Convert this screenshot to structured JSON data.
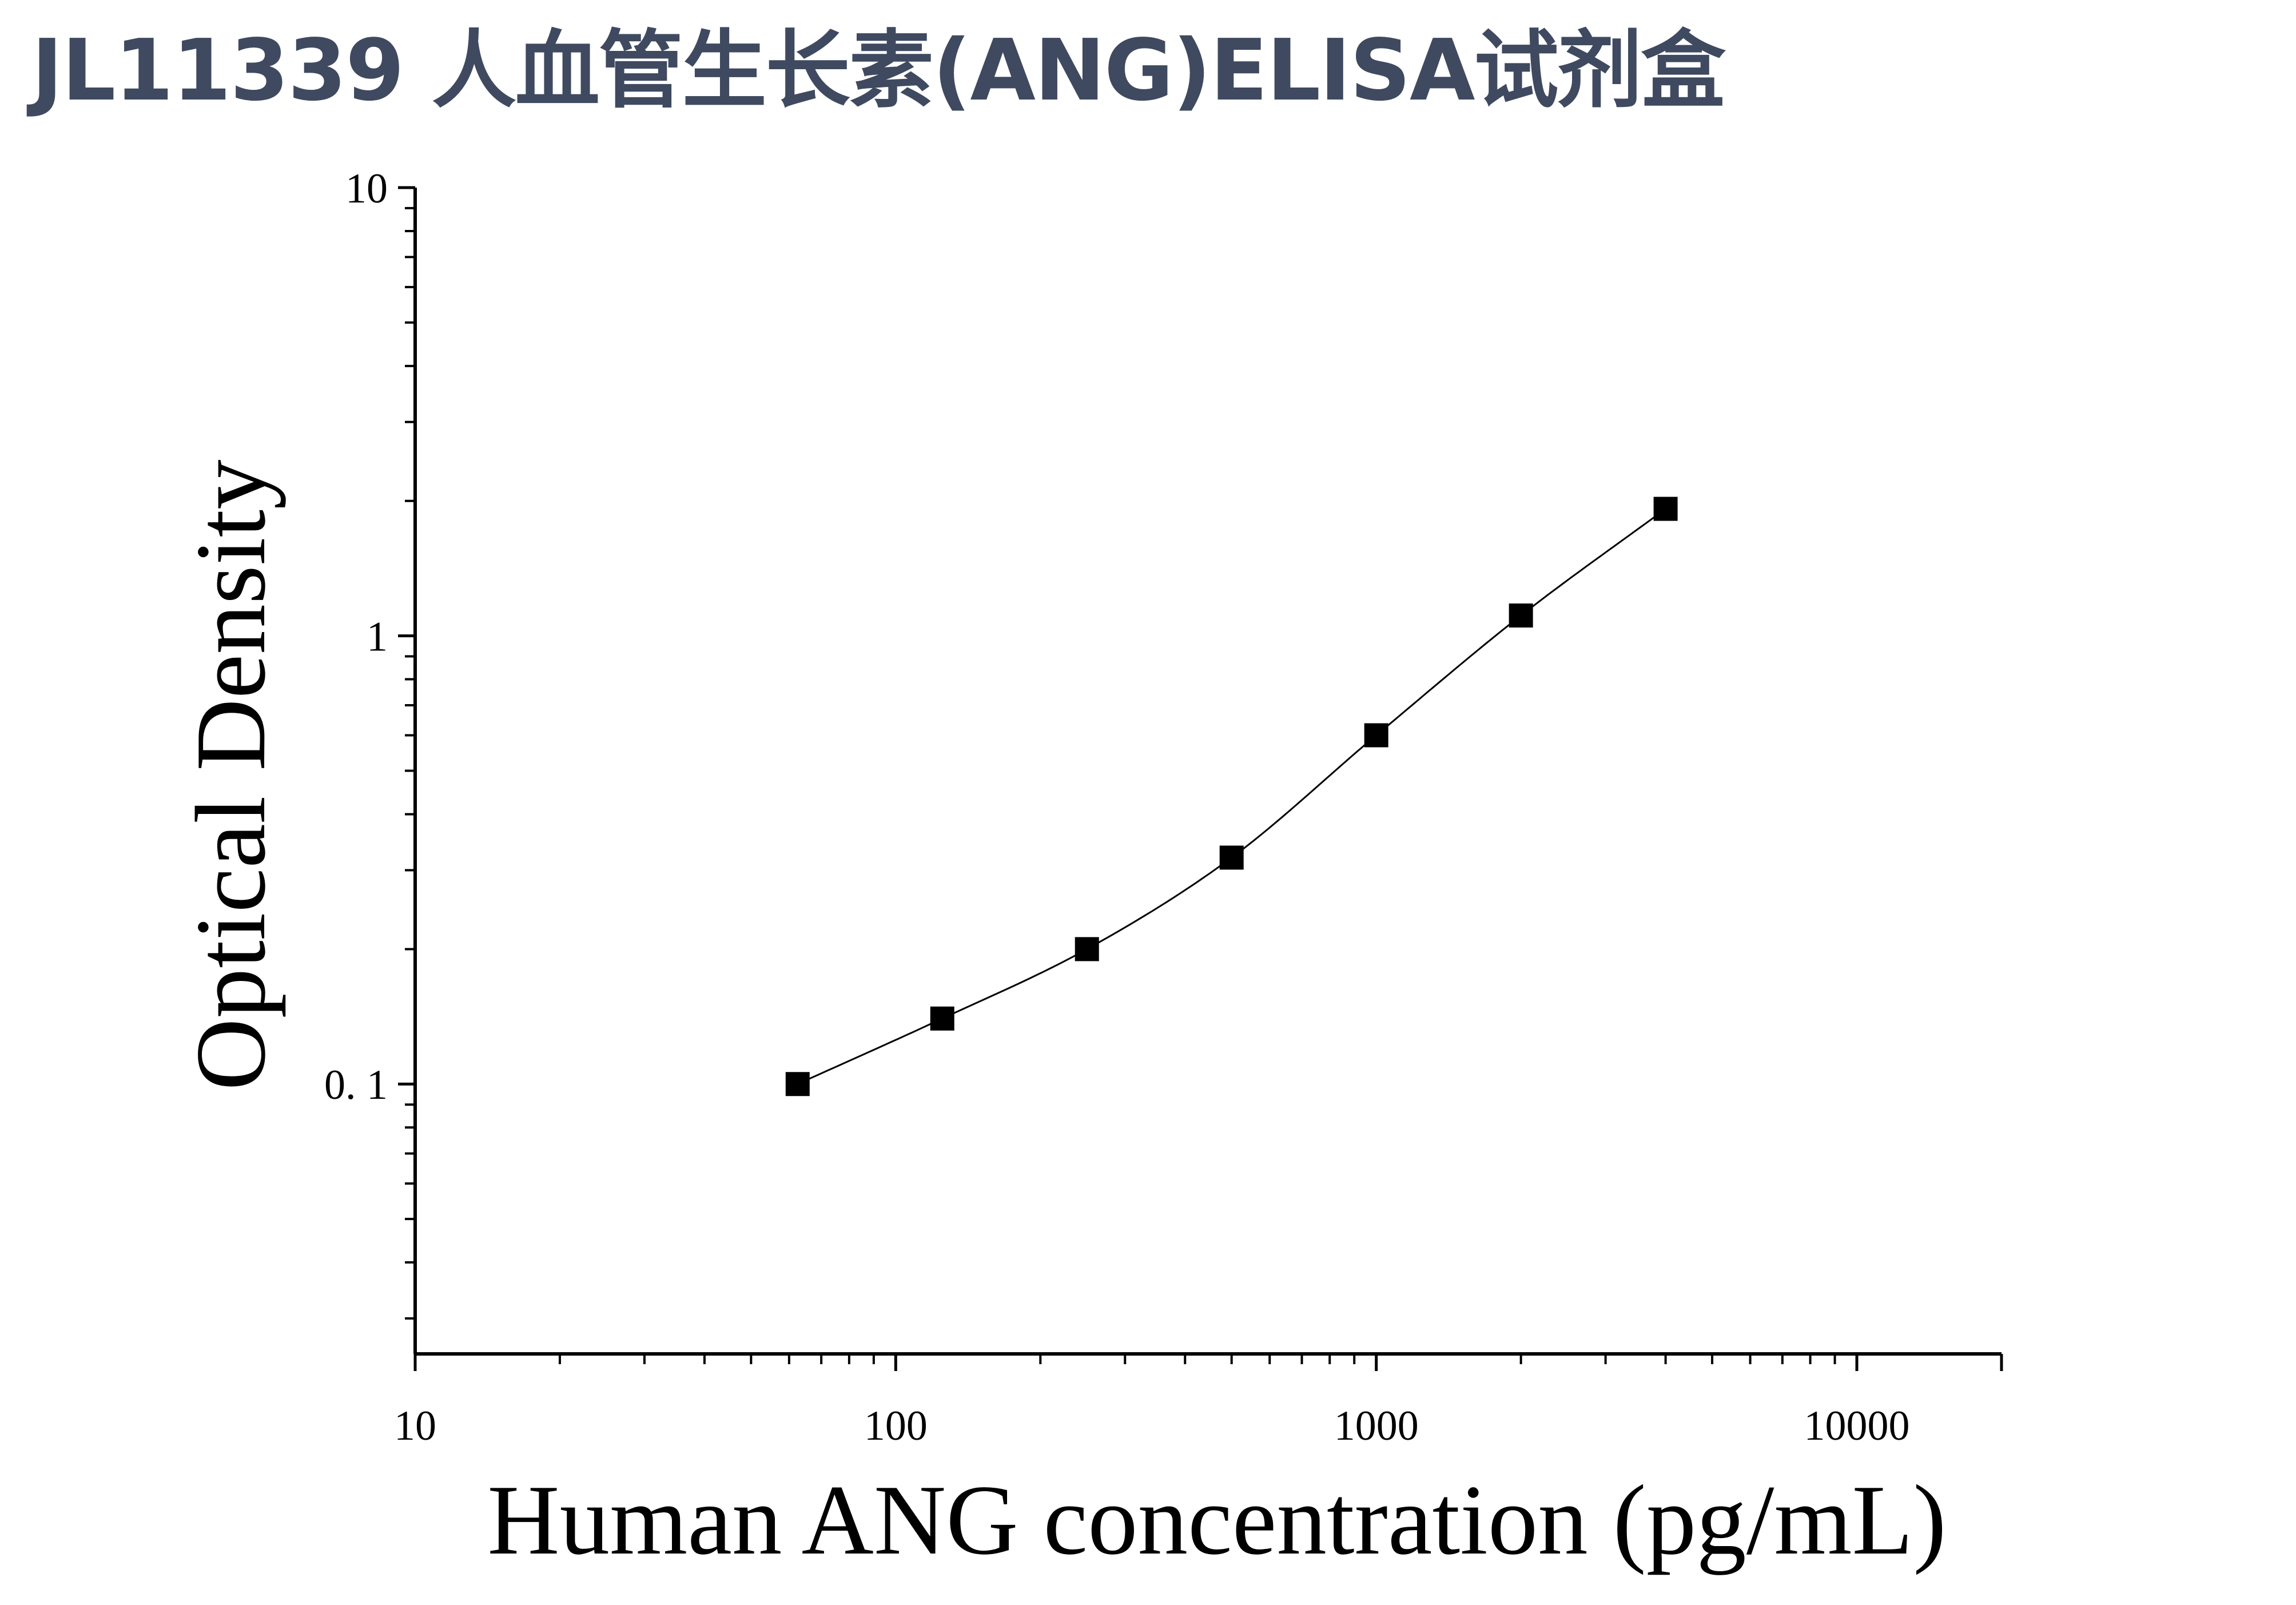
{
  "title": "JL11339 人血管生长素(ANG)ELISA试剂盒",
  "colors": {
    "title": "#3f4a60",
    "marks": "#000000"
  },
  "chart_data": {
    "type": "scatter",
    "title": "",
    "xlabel": "Human ANG concentration (pg/mL)",
    "ylabel": "Optical Density",
    "x_scale": "log",
    "y_scale": "log",
    "xlim": [
      10,
      20000
    ],
    "ylim": [
      0.025,
      10
    ],
    "x_ticks": [
      {
        "value": 10,
        "label": "10"
      },
      {
        "value": 100,
        "label": "100"
      },
      {
        "value": 1000,
        "label": "1000"
      },
      {
        "value": 10000,
        "label": "10000"
      }
    ],
    "y_ticks": [
      {
        "value": 0.1,
        "label": "0. 1"
      },
      {
        "value": 1,
        "label": "1"
      },
      {
        "value": 10,
        "label": "10"
      }
    ],
    "grid": false,
    "series": [
      {
        "marker": "square",
        "fit_curve": true,
        "x": [
          62.5,
          125,
          250,
          500,
          1000,
          2000,
          4000
        ],
        "y": [
          0.1,
          0.14,
          0.2,
          0.32,
          0.6,
          1.11,
          1.92
        ]
      }
    ]
  }
}
